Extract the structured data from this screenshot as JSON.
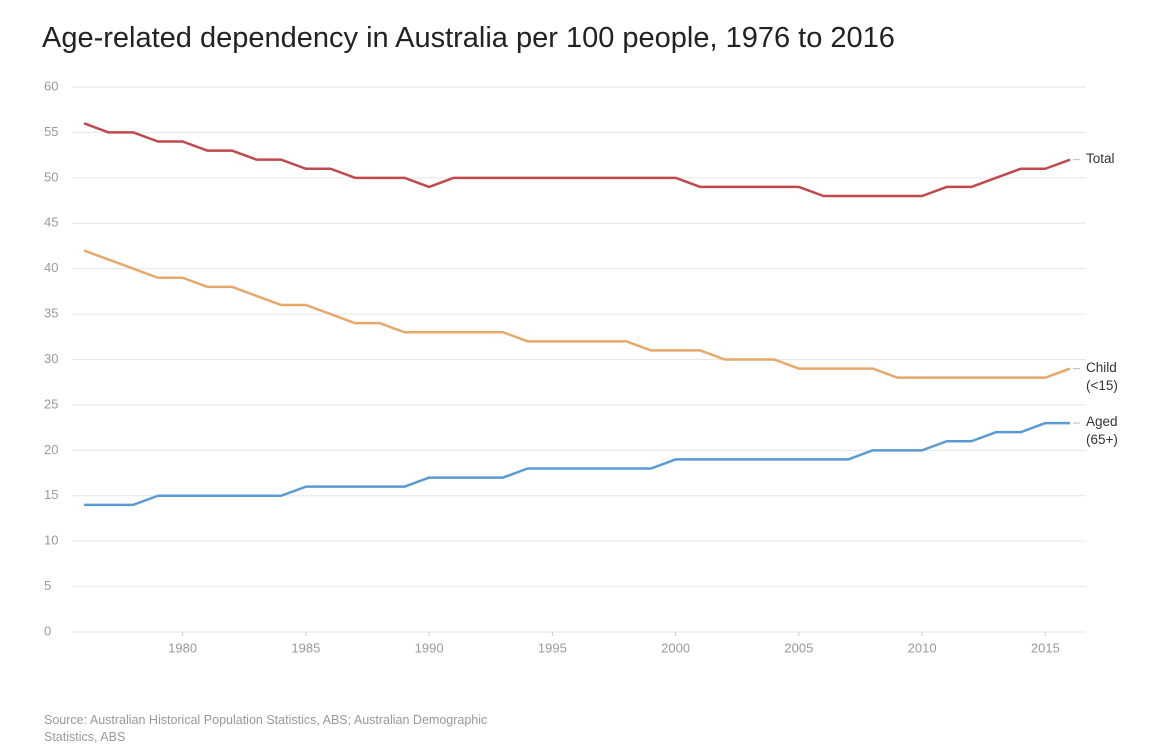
{
  "chart_data": {
    "type": "line",
    "title": "Age-related dependency in Australia per 100 people, 1976 to 2016",
    "source": "Source: Australian Historical Population Statistics, ABS; Australian Demographic Statistics, ABS",
    "x": [
      1976,
      1977,
      1978,
      1979,
      1980,
      1981,
      1982,
      1983,
      1984,
      1985,
      1986,
      1987,
      1988,
      1989,
      1990,
      1991,
      1992,
      1993,
      1994,
      1995,
      1996,
      1997,
      1998,
      1999,
      2000,
      2001,
      2002,
      2003,
      2004,
      2005,
      2006,
      2007,
      2008,
      2009,
      2010,
      2011,
      2012,
      2013,
      2014,
      2015,
      2016
    ],
    "series": [
      {
        "name": "Total",
        "color": "#c0494e",
        "values": [
          56,
          55,
          55,
          54,
          54,
          53,
          53,
          52,
          52,
          51,
          51,
          50,
          50,
          50,
          49,
          50,
          50,
          50,
          50,
          50,
          50,
          50,
          50,
          50,
          50,
          49,
          49,
          49,
          49,
          49,
          48,
          48,
          48,
          48,
          48,
          49,
          49,
          50,
          51,
          51,
          52
        ]
      },
      {
        "name": "Child (<15)",
        "color": "#e8a86a",
        "values": [
          42,
          41,
          40,
          39,
          39,
          38,
          38,
          37,
          36,
          36,
          35,
          34,
          34,
          33,
          33,
          33,
          33,
          33,
          32,
          32,
          32,
          32,
          32,
          31,
          31,
          31,
          30,
          30,
          30,
          29,
          29,
          29,
          29,
          28,
          28,
          28,
          28,
          28,
          28,
          28,
          29
        ]
      },
      {
        "name": "Aged (65+)",
        "color": "#5b9bd5",
        "values": [
          14,
          14,
          14,
          15,
          15,
          15,
          15,
          15,
          15,
          16,
          16,
          16,
          16,
          16,
          17,
          17,
          17,
          17,
          18,
          18,
          18,
          18,
          18,
          18,
          19,
          19,
          19,
          19,
          19,
          19,
          19,
          19,
          20,
          20,
          20,
          21,
          21,
          22,
          22,
          23,
          23
        ]
      }
    ],
    "xlim": [
      1976,
      2016
    ],
    "xticks": [
      1980,
      1985,
      1990,
      1995,
      2000,
      2005,
      2010,
      2015
    ],
    "ylim": [
      0,
      60
    ],
    "yticks": [
      0,
      5,
      10,
      15,
      20,
      25,
      30,
      35,
      40,
      45,
      50,
      55,
      60
    ],
    "grid": true
  }
}
